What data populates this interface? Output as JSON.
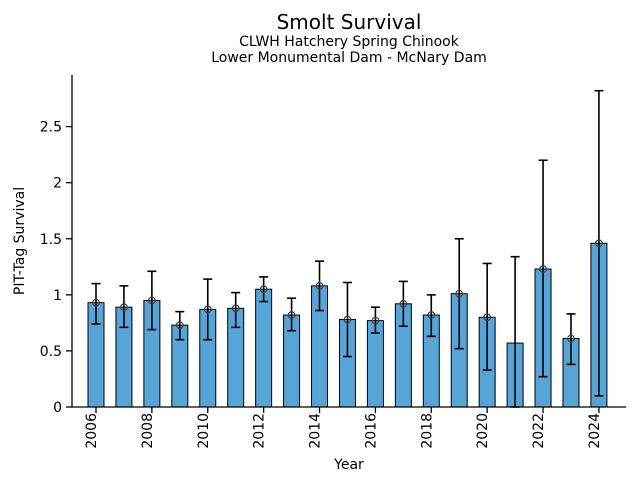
{
  "chart_data": {
    "type": "bar",
    "title": "Smolt Survival",
    "subtitle": [
      "CLWH Hatchery Spring Chinook",
      "Lower Monumental Dam - McNary Dam"
    ],
    "xlabel": "Year",
    "ylabel": "PIT-Tag Survival",
    "ylim": [
      0,
      2.96
    ],
    "yticks": [
      0,
      0.5,
      1,
      1.5,
      2,
      2.5
    ],
    "ytick_labels": [
      "0",
      "0.5",
      "1",
      "1.5",
      "2",
      "2.5"
    ],
    "xticks": [
      2006,
      2008,
      2010,
      2012,
      2014,
      2016,
      2018,
      2020,
      2022,
      2024
    ],
    "xtick_labels": [
      "2006",
      "2008",
      "2010",
      "2012",
      "2014",
      "2016",
      "2018",
      "2020",
      "2022",
      "2024"
    ],
    "grid": false,
    "legend": null,
    "bar_color": "#56A5D6",
    "bar_edge_color": "#000000",
    "error_bar_color": "#000000",
    "marker_color": "#404040",
    "categories": [
      2006,
      2007,
      2008,
      2009,
      2010,
      2011,
      2012,
      2013,
      2014,
      2015,
      2016,
      2017,
      2018,
      2019,
      2020,
      2021,
      2022,
      2023,
      2024
    ],
    "series": [
      {
        "name": "PIT-Tag Survival",
        "values": [
          0.93,
          0.89,
          0.95,
          0.73,
          0.87,
          0.88,
          1.05,
          0.82,
          1.08,
          0.78,
          0.77,
          0.92,
          0.82,
          1.01,
          0.8,
          0.57,
          1.23,
          0.61,
          1.46
        ],
        "ci_low": [
          0.74,
          0.71,
          0.69,
          0.6,
          0.6,
          0.71,
          0.94,
          0.68,
          0.86,
          0.45,
          0.66,
          0.72,
          0.63,
          0.52,
          0.33,
          0.0,
          0.27,
          0.38,
          0.1
        ],
        "ci_high": [
          1.1,
          1.08,
          1.21,
          0.85,
          1.14,
          1.02,
          1.16,
          0.97,
          1.3,
          1.11,
          0.89,
          1.12,
          1.0,
          1.5,
          1.28,
          1.34,
          2.2,
          0.83,
          2.82
        ],
        "markers_omitted": [
          2021
        ]
      }
    ]
  }
}
